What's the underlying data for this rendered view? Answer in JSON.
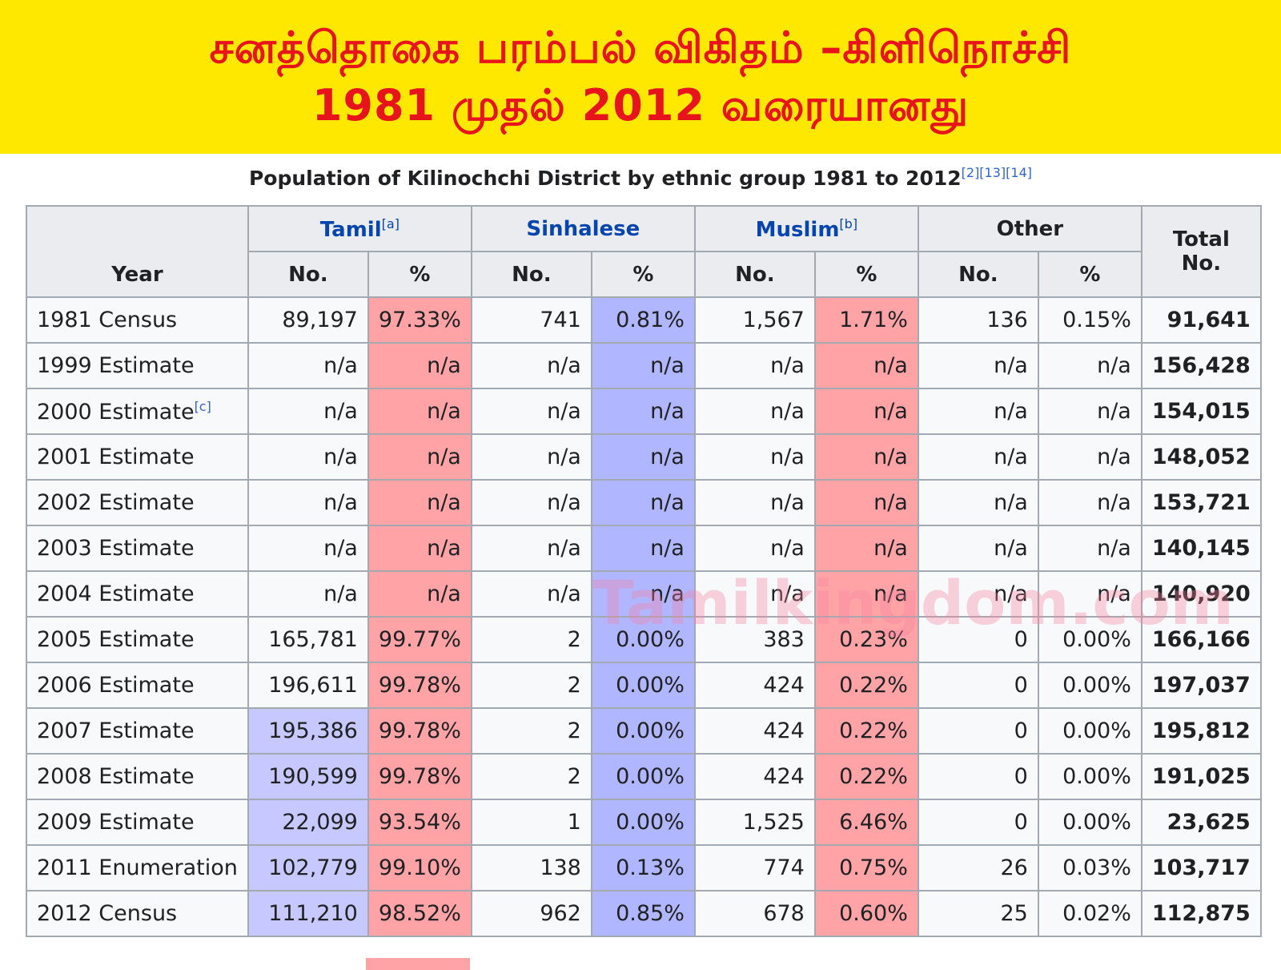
{
  "banner": {
    "line1": "சனத்தொகை பரம்பல் விகிதம் –கிளிநொச்சி",
    "line2": "1981 முதல் 2012 வரையானது"
  },
  "caption": {
    "text": "Population of Kilinochchi District by ethnic group 1981 to 2012",
    "refs": "[2][13][14]"
  },
  "table": {
    "headers": {
      "year": "Year",
      "tamil": "Tamil",
      "tamil_note": "[a]",
      "sinhalese": "Sinhalese",
      "muslim": "Muslim",
      "muslim_note": "[b]",
      "other": "Other",
      "total": "Total",
      "no": "No.",
      "pct": "%"
    },
    "rows": [
      {
        "year": "1981 Census",
        "note": "",
        "tamil_no": "89,197",
        "tamil_pct": "97.33%",
        "sin_no": "741",
        "sin_pct": "0.81%",
        "mus_no": "1,567",
        "mus_pct": "1.71%",
        "oth_no": "136",
        "oth_pct": "0.15%",
        "total": "91,641"
      },
      {
        "year": "1999 Estimate",
        "note": "",
        "tamil_no": "n/a",
        "tamil_pct": "n/a",
        "sin_no": "n/a",
        "sin_pct": "n/a",
        "mus_no": "n/a",
        "mus_pct": "n/a",
        "oth_no": "n/a",
        "oth_pct": "n/a",
        "total": "156,428"
      },
      {
        "year": "2000 Estimate",
        "note": "[c]",
        "tamil_no": "n/a",
        "tamil_pct": "n/a",
        "sin_no": "n/a",
        "sin_pct": "n/a",
        "mus_no": "n/a",
        "mus_pct": "n/a",
        "oth_no": "n/a",
        "oth_pct": "n/a",
        "total": "154,015"
      },
      {
        "year": "2001 Estimate",
        "note": "",
        "tamil_no": "n/a",
        "tamil_pct": "n/a",
        "sin_no": "n/a",
        "sin_pct": "n/a",
        "mus_no": "n/a",
        "mus_pct": "n/a",
        "oth_no": "n/a",
        "oth_pct": "n/a",
        "total": "148,052"
      },
      {
        "year": "2002 Estimate",
        "note": "",
        "tamil_no": "n/a",
        "tamil_pct": "n/a",
        "sin_no": "n/a",
        "sin_pct": "n/a",
        "mus_no": "n/a",
        "mus_pct": "n/a",
        "oth_no": "n/a",
        "oth_pct": "n/a",
        "total": "153,721"
      },
      {
        "year": "2003 Estimate",
        "note": "",
        "tamil_no": "n/a",
        "tamil_pct": "n/a",
        "sin_no": "n/a",
        "sin_pct": "n/a",
        "mus_no": "n/a",
        "mus_pct": "n/a",
        "oth_no": "n/a",
        "oth_pct": "n/a",
        "total": "140,145"
      },
      {
        "year": "2004 Estimate",
        "note": "",
        "tamil_no": "n/a",
        "tamil_pct": "n/a",
        "sin_no": "n/a",
        "sin_pct": "n/a",
        "mus_no": "n/a",
        "mus_pct": "n/a",
        "oth_no": "n/a",
        "oth_pct": "n/a",
        "total": "140,920"
      },
      {
        "year": "2005 Estimate",
        "note": "",
        "tamil_no": "165,781",
        "tamil_pct": "99.77%",
        "sin_no": "2",
        "sin_pct": "0.00%",
        "mus_no": "383",
        "mus_pct": "0.23%",
        "oth_no": "0",
        "oth_pct": "0.00%",
        "total": "166,166"
      },
      {
        "year": "2006 Estimate",
        "note": "",
        "tamil_no": "196,611",
        "tamil_pct": "99.78%",
        "sin_no": "2",
        "sin_pct": "0.00%",
        "mus_no": "424",
        "mus_pct": "0.22%",
        "oth_no": "0",
        "oth_pct": "0.00%",
        "total": "197,037"
      },
      {
        "year": "2007 Estimate",
        "note": "",
        "tamil_no": "195,386",
        "tamil_pct": "99.78%",
        "sin_no": "2",
        "sin_pct": "0.00%",
        "mus_no": "424",
        "mus_pct": "0.22%",
        "oth_no": "0",
        "oth_pct": "0.00%",
        "total": "195,812"
      },
      {
        "year": "2008 Estimate",
        "note": "",
        "tamil_no": "190,599",
        "tamil_pct": "99.78%",
        "sin_no": "2",
        "sin_pct": "0.00%",
        "mus_no": "424",
        "mus_pct": "0.22%",
        "oth_no": "0",
        "oth_pct": "0.00%",
        "total": "191,025"
      },
      {
        "year": "2009 Estimate",
        "note": "",
        "tamil_no": "22,099",
        "tamil_pct": "93.54%",
        "sin_no": "1",
        "sin_pct": "0.00%",
        "mus_no": "1,525",
        "mus_pct": "6.46%",
        "oth_no": "0",
        "oth_pct": "0.00%",
        "total": "23,625"
      },
      {
        "year": "2011 Enumeration",
        "note": "",
        "tamil_no": "102,779",
        "tamil_pct": "99.10%",
        "sin_no": "138",
        "sin_pct": "0.13%",
        "mus_no": "774",
        "mus_pct": "0.75%",
        "oth_no": "26",
        "oth_pct": "0.03%",
        "total": "103,717"
      },
      {
        "year": "2012 Census",
        "note": "",
        "tamil_no": "111,210",
        "tamil_pct": "98.52%",
        "sin_no": "962",
        "sin_pct": "0.85%",
        "mus_no": "678",
        "mus_pct": "0.60%",
        "oth_no": "25",
        "oth_pct": "0.02%",
        "total": "112,875"
      }
    ]
  },
  "watermark": "Tamilkingdom.com",
  "colors": {
    "banner_bg": "#ffe800",
    "banner_text": "#e8141b",
    "highlight_red": "#ffa3a6",
    "highlight_blue": "#b0b6ff",
    "header_bg": "#eaecf0",
    "link": "#0645ad"
  }
}
